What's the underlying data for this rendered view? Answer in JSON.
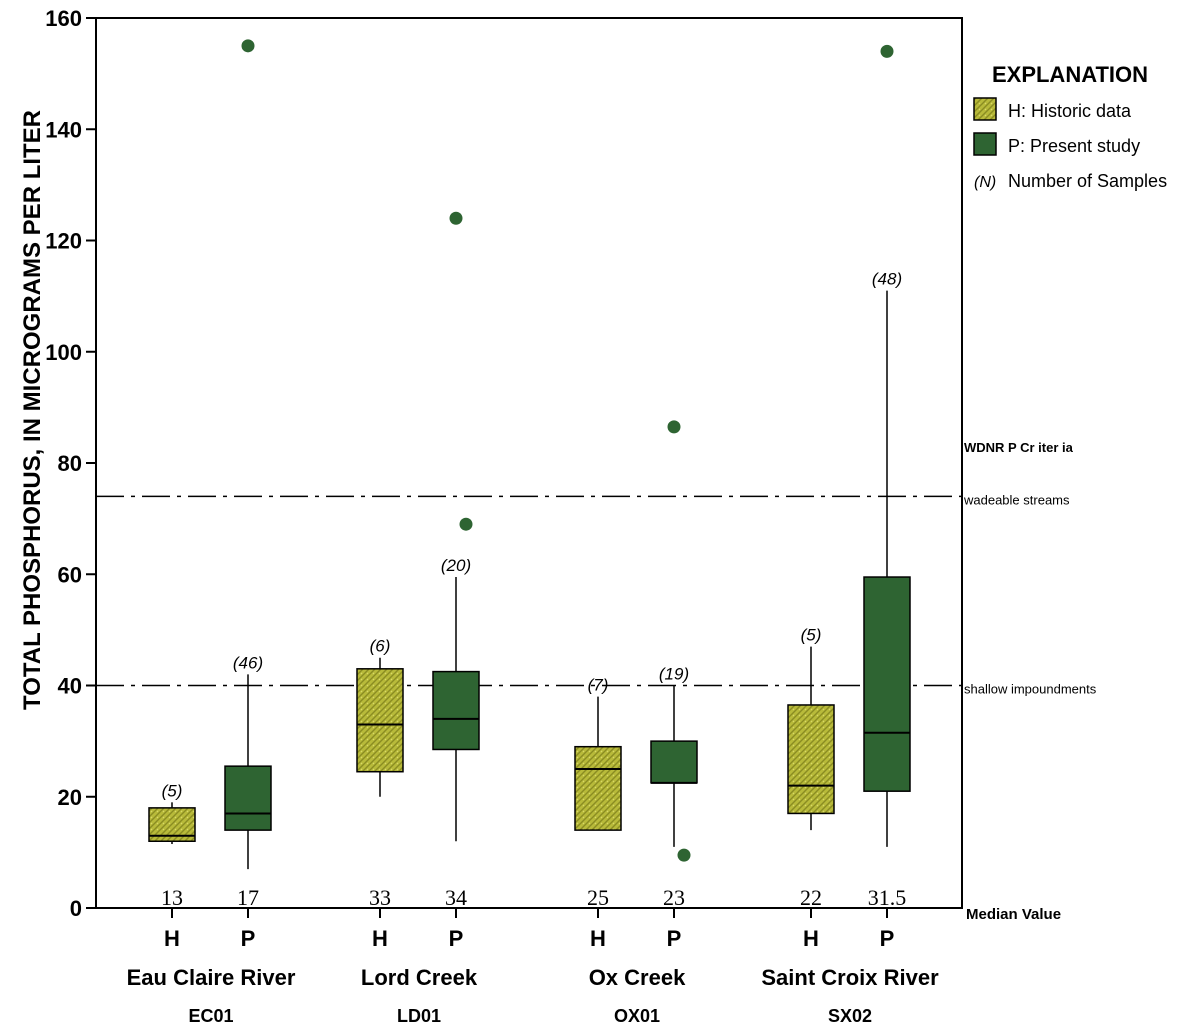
{
  "chart_data": {
    "type": "box",
    "ylabel": "TOTAL PHOSPHORUS, IN MICROGRAMS PER LITER",
    "ylim": [
      0,
      160
    ],
    "yticks": [
      0,
      20,
      40,
      60,
      80,
      100,
      120,
      140,
      160
    ],
    "grid": false,
    "legend": {
      "position": "top-right",
      "title": "EXPLANATION",
      "entries": [
        {
          "label": "H: Historic data",
          "color": "#a8aa2c",
          "pattern": "hatched"
        },
        {
          "label": "P: Present study",
          "color": "#2e6432"
        },
        {
          "symbol": "(N)",
          "label": "Number of Samples"
        }
      ]
    },
    "colors": {
      "historic": "#a8aa2c",
      "present": "#2e6432",
      "outlier": "#2e6432"
    },
    "sites": [
      {
        "name": "Eau Claire River",
        "code": "EC01",
        "boxes": [
          {
            "label": "H",
            "group": "historic",
            "n": "(5)",
            "median_label": "13",
            "min": 11.5,
            "q1": 12,
            "median": 13,
            "q3": 18,
            "max": 19,
            "outliers": []
          },
          {
            "label": "P",
            "group": "present",
            "n": "(46)",
            "median_label": "17",
            "min": 7,
            "q1": 14,
            "median": 17,
            "q3": 25.5,
            "max": 42,
            "outliers": [
              155
            ]
          }
        ]
      },
      {
        "name": "Lord Creek",
        "code": "LD01",
        "boxes": [
          {
            "label": "H",
            "group": "historic",
            "n": "(6)",
            "median_label": "33",
            "min": 20,
            "q1": 24.5,
            "median": 33,
            "q3": 43,
            "max": 45,
            "outliers": []
          },
          {
            "label": "P",
            "group": "present",
            "n": "(20)",
            "median_label": "34",
            "min": 12,
            "q1": 28.5,
            "median": 34,
            "q3": 42.5,
            "max": 59.5,
            "outliers": [
              124,
              69
            ]
          }
        ]
      },
      {
        "name": "Ox Creek",
        "code": "OX01",
        "boxes": [
          {
            "label": "H",
            "group": "historic",
            "n": "(7)",
            "median_label": "25",
            "min": 14,
            "q1": 14,
            "median": 25,
            "q3": 29,
            "max": 38,
            "outliers": []
          },
          {
            "label": "P",
            "group": "present",
            "n": "(19)",
            "median_label": "23",
            "min": 11,
            "q1": 22.5,
            "median": 22.5,
            "q3": 30,
            "max": 40,
            "outliers": [
              86.5,
              9.5
            ]
          }
        ]
      },
      {
        "name": "Saint Croix River",
        "code": "SX02",
        "boxes": [
          {
            "label": "H",
            "group": "historic",
            "n": "(5)",
            "median_label": "22",
            "min": 14,
            "q1": 17,
            "median": 22,
            "q3": 36.5,
            "max": 47,
            "outliers": []
          },
          {
            "label": "P",
            "group": "present",
            "n": "(48)",
            "median_label": "31.5",
            "min": 11,
            "q1": 21,
            "median": 31.5,
            "q3": 59.5,
            "max": 111,
            "outliers": [
              154
            ]
          }
        ]
      }
    ],
    "reference_lines": [
      {
        "value": 74,
        "label": "wadeable streams"
      },
      {
        "value": 40,
        "label": "shallow impoundments"
      }
    ],
    "reference_title": "WDNR P Cr iter ia",
    "median_row_title": "Median Value"
  }
}
